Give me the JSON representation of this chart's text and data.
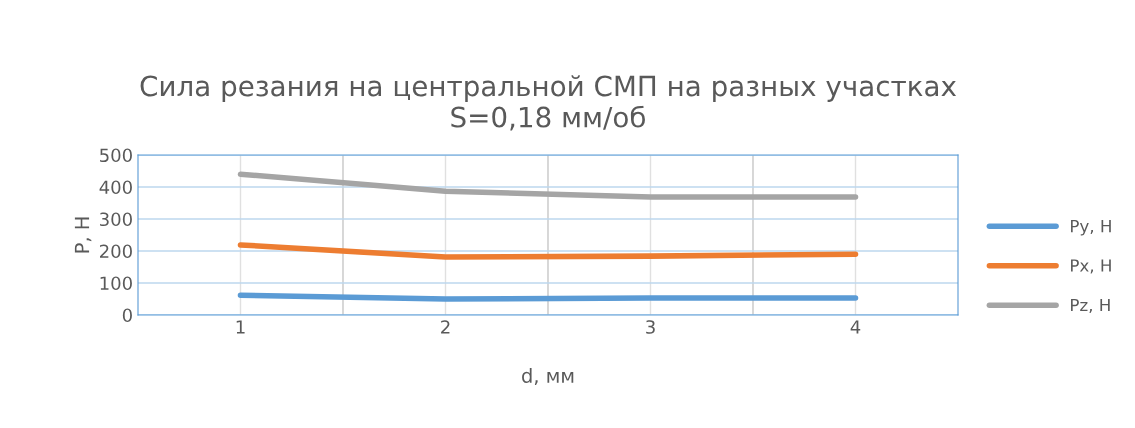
{
  "chart_data": {
    "type": "line",
    "title": "Сила резания на центральной СМП на разных участках\nS=0,18 мм/об",
    "xlabel": "d, мм",
    "ylabel": "P, Н",
    "categories": [
      "1",
      "2",
      "3",
      "4"
    ],
    "series": [
      {
        "name": "Py, Н",
        "color": "#5b9bd5",
        "values": [
          62,
          50,
          53,
          53
        ]
      },
      {
        "name": "Px, Н",
        "color": "#ed7d31",
        "values": [
          219,
          181,
          184,
          190
        ]
      },
      {
        "name": "Pz, Н",
        "color": "#a5a5a5",
        "values": [
          440,
          387,
          369,
          369
        ]
      }
    ],
    "ylim": [
      0,
      500
    ],
    "yticks": [
      0,
      100,
      200,
      300,
      400,
      500
    ],
    "grid": true,
    "legend": "right",
    "marker": "none",
    "line_style": "solid"
  }
}
